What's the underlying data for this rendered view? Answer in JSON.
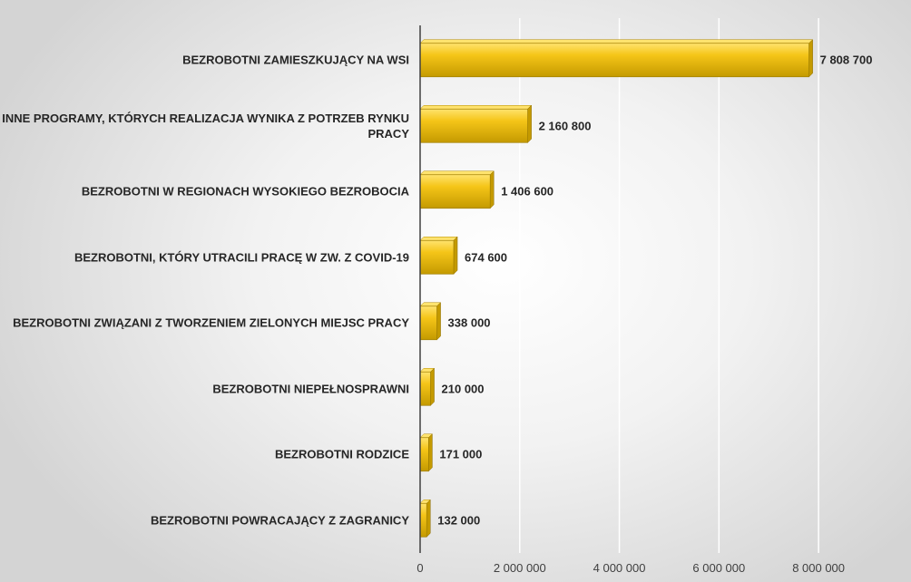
{
  "chart_data": {
    "type": "bar",
    "orientation": "horizontal",
    "categories": [
      "BEZROBOTNI ZAMIESZKUJĄCY NA WSI",
      "INNE PROGRAMY, KTÓRYCH REALIZACJA WYNIKA Z POTRZEB RYNKU PRACY",
      "BEZROBOTNI W REGIONACH WYSOKIEGO BEZROBOCIA",
      "BEZROBOTNI, KTÓRY UTRACILI PRACĘ W ZW. Z COVID-19",
      "BEZROBOTNI ZWIĄZANI Z TWORZENIEM ZIELONYCH MIEJSC PRACY",
      "BEZROBOTNI NIEPEŁNOSPRAWNI",
      "BEZROBOTNI RODZICE",
      "BEZROBOTNI POWRACAJĄCY Z ZAGRANICY"
    ],
    "values": [
      7808700,
      2160800,
      1406600,
      674600,
      338000,
      210000,
      171000,
      132000
    ],
    "value_labels": [
      "7 808 700",
      "2 160 800",
      "1 406 600",
      "674 600",
      "338 000",
      "210 000",
      "171 000",
      "132 000"
    ],
    "xticks": [
      0,
      2000000,
      4000000,
      6000000,
      8000000
    ],
    "xtick_labels": [
      "0",
      "2 000 000",
      "4 000 000",
      "6 000 000",
      "8 000 000"
    ],
    "xlim": [
      0,
      9000000
    ],
    "grid": "vertical",
    "colors": {
      "bar": "#f5c518",
      "bar_highlight": "#ffe36e",
      "bar_shadow": "#c49a00",
      "grid": "#ffffff",
      "axis": "#404040"
    }
  }
}
